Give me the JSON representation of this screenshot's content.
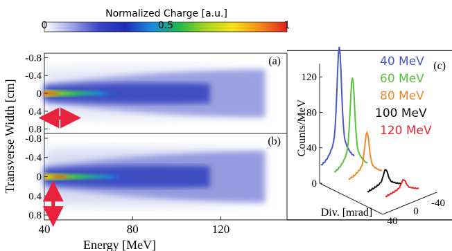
{
  "chart_data": [
    {
      "type": "colorbar",
      "title": "Normalized Charge [a.u.]",
      "tick_labels": [
        "0",
        "0.5",
        "1"
      ],
      "range": [
        0,
        1
      ],
      "colormap": [
        "#ffffff",
        "#9ea6e6",
        "#3a46c8",
        "#1c2cb8",
        "#1a8ce0",
        "#1fb84a",
        "#a9d41e",
        "#f6e01a",
        "#f48a1a",
        "#e02020"
      ]
    },
    {
      "type": "heatmap",
      "panel_label": "(a)",
      "xlabel": "Energy [MeV]",
      "ylabel": "Transverse Width [cm]",
      "xlim": [
        40,
        150
      ],
      "ylim": [
        -0.9,
        0.9
      ],
      "y_ticks": [
        "-0.8",
        "-0.4",
        "0",
        "0.4",
        "0.8"
      ],
      "core": {
        "x_end": 75,
        "peak_x": 43,
        "y_center": 0
      },
      "spread_x_end": 140,
      "marker": "horizontal-double-arrow",
      "marker_color": "#e8213c"
    },
    {
      "type": "heatmap",
      "panel_label": "(b)",
      "xlabel": "Energy [MeV]",
      "ylabel": "Transverse Width [cm]",
      "xlim": [
        40,
        150
      ],
      "ylim": [
        -0.9,
        0.9
      ],
      "x_ticks": [
        "40",
        "80",
        "120"
      ],
      "y_ticks": [
        "-0.8",
        "-0.4",
        "0",
        "0.4",
        "0.8"
      ],
      "core": {
        "x_end": 80,
        "peak_x": 47,
        "y_center": 0
      },
      "spread_x_end": 140,
      "marker": "vertical-double-arrow",
      "marker_color": "#e8213c"
    },
    {
      "type": "line",
      "panel_label": "(c)",
      "ylabel": "Counts/MeV",
      "xlabel": "Div. [mrad]",
      "x_ticks": [
        "40",
        "0",
        "-40"
      ],
      "ylim": [
        0,
        135
      ],
      "y_ticks": [
        "0",
        "40",
        "80",
        "120"
      ],
      "series": [
        {
          "name": "40 MeV",
          "color": "#4a56c8",
          "peak": 125
        },
        {
          "name": "60 MeV",
          "color": "#59c23a",
          "peak": 98
        },
        {
          "name": "80 MeV",
          "color": "#f08a28",
          "peak": 44
        },
        {
          "name": "100 MeV",
          "color": "#111111",
          "peak": 16
        },
        {
          "name": "120 MeV",
          "color": "#e8262c",
          "peak": 10
        }
      ]
    }
  ]
}
